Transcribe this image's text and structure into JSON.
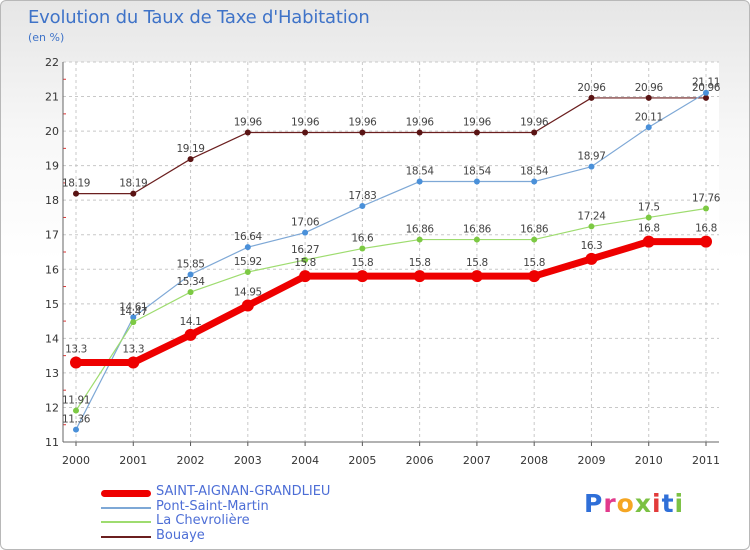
{
  "title": "Evolution du Taux de Taxe d'Habitation",
  "subtitle": "(en %)",
  "logo": {
    "text": "Proxiti",
    "colors": [
      "#2f6fd8",
      "#e23a8c",
      "#f5a623",
      "#7bc143",
      "#e23a3a",
      "#2f6fd8",
      "#7bc143"
    ]
  },
  "chart_data": {
    "type": "line",
    "title": "Evolution du Taux de Taxe d'Habitation",
    "ylabel": "(en %)",
    "xlabel": "",
    "x": [
      "2000",
      "2001",
      "2002",
      "2003",
      "2004",
      "2005",
      "2006",
      "2007",
      "2008",
      "2009",
      "2010",
      "2011"
    ],
    "ylim": [
      11,
      22
    ],
    "yticks": [
      "11",
      "12",
      "13",
      "14",
      "15",
      "16",
      "17",
      "18",
      "19",
      "20",
      "21",
      "22"
    ],
    "grid": "horizontal dashed",
    "legend_position": "bottom-left",
    "series": [
      {
        "name": "Bouaye",
        "color": "#6b1f1f",
        "marker": "#5a1414",
        "width": 1.2,
        "radius": 3,
        "values": [
          18.19,
          18.19,
          19.19,
          19.96,
          19.96,
          19.96,
          19.96,
          19.96,
          19.96,
          20.96,
          20.96,
          20.96
        ],
        "labels": [
          "18.19",
          "18.19",
          "19.19",
          "19.96",
          "19.96",
          "19.96",
          "19.96",
          "19.96",
          "19.96",
          "20.96",
          "20.96",
          "20.96"
        ]
      },
      {
        "name": "Pont-Saint-Martin",
        "color": "#7ea8d6",
        "marker": "#4a90d9",
        "width": 1.2,
        "radius": 3,
        "values": [
          11.36,
          14.61,
          15.85,
          16.64,
          17.06,
          17.83,
          18.54,
          18.54,
          18.54,
          18.97,
          20.11,
          21.11
        ],
        "labels": [
          "11.36",
          "14.61",
          "15.85",
          "16.64",
          "17.06",
          "17.83",
          "18.54",
          "18.54",
          "18.54",
          "18.97",
          "20.11",
          "21.11"
        ]
      },
      {
        "name": "La Chevrolière",
        "color": "#9edc6f",
        "marker": "#7cc943",
        "width": 1.2,
        "radius": 3,
        "values": [
          11.91,
          14.47,
          15.34,
          15.92,
          16.27,
          16.6,
          16.86,
          16.86,
          16.86,
          17.24,
          17.5,
          17.76
        ],
        "labels": [
          "11.91",
          "14.47",
          "15.34",
          "15.92",
          "16.27",
          "16.6",
          "16.86",
          "16.86",
          "16.86",
          "17.24",
          "17.5",
          "17.76"
        ]
      },
      {
        "name": "SAINT-AIGNAN-GRANDLIEU",
        "color": "#ee0000",
        "marker": "#ee0000",
        "width": 7,
        "radius": 6,
        "values": [
          13.3,
          13.3,
          14.1,
          14.95,
          15.8,
          15.8,
          15.8,
          15.8,
          15.8,
          16.3,
          16.8,
          16.8
        ],
        "labels": [
          "13.3",
          "13.3",
          "14.1",
          "14.95",
          "15.8",
          "15.8",
          "15.8",
          "15.8",
          "15.8",
          "16.3",
          "16.8",
          "16.8"
        ]
      }
    ]
  },
  "legend": [
    {
      "name": "SAINT-AIGNAN-GRANDLIEU",
      "color": "#ee0000",
      "thickness": 7
    },
    {
      "name": "Pont-Saint-Martin",
      "color": "#7ea8d6",
      "thickness": 2
    },
    {
      "name": "La Chevrolière",
      "color": "#9edc6f",
      "thickness": 2
    },
    {
      "name": "Bouaye",
      "color": "#6b1f1f",
      "thickness": 2
    }
  ]
}
